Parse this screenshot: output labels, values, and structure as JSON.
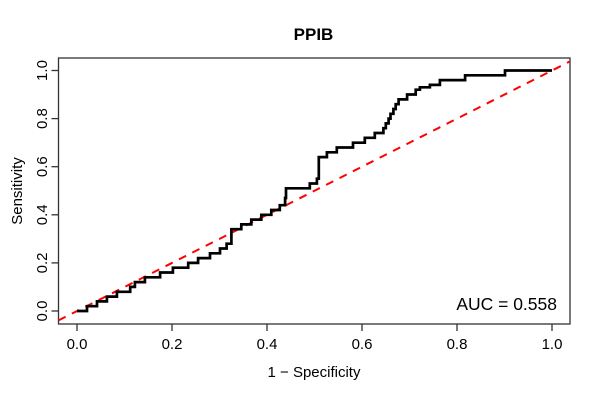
{
  "chart_data": {
    "type": "line",
    "subtype": "roc-step-curve",
    "title": "PPIB",
    "xlabel": "1 − Specificity",
    "ylabel": "Sensitivity",
    "xlim": [
      0.0,
      1.0
    ],
    "ylim": [
      0.0,
      1.0
    ],
    "grid": false,
    "background_color": "#ffffff",
    "box_color": "#333333",
    "x_ticks": {
      "values": [
        0.0,
        0.2,
        0.4,
        0.6,
        0.8,
        1.0
      ],
      "labels": [
        "0.0",
        "0.2",
        "0.4",
        "0.6",
        "0.8",
        "1.0"
      ]
    },
    "y_ticks": {
      "values": [
        0.0,
        0.2,
        0.4,
        0.6,
        0.8,
        1.0
      ],
      "labels": [
        "0.0",
        "0.2",
        "0.4",
        "0.6",
        "0.8",
        "1.0"
      ]
    },
    "annotation": {
      "text": "AUC = 0.558",
      "position": "bottom-right-inside"
    },
    "auc": 0.558,
    "series": [
      {
        "name": "ROC curve",
        "color": "#000000",
        "line_style": "solid",
        "line_width": 2.7,
        "step": true,
        "points": [
          [
            0.0,
            0.0
          ],
          [
            0.021,
            0.02
          ],
          [
            0.042,
            0.04
          ],
          [
            0.063,
            0.06
          ],
          [
            0.084,
            0.08
          ],
          [
            0.112,
            0.1
          ],
          [
            0.122,
            0.12
          ],
          [
            0.143,
            0.14
          ],
          [
            0.175,
            0.16
          ],
          [
            0.202,
            0.18
          ],
          [
            0.234,
            0.2
          ],
          [
            0.255,
            0.22
          ],
          [
            0.28,
            0.24
          ],
          [
            0.301,
            0.26
          ],
          [
            0.315,
            0.28
          ],
          [
            0.325,
            0.3
          ],
          [
            0.325,
            0.34
          ],
          [
            0.346,
            0.36
          ],
          [
            0.367,
            0.38
          ],
          [
            0.388,
            0.4
          ],
          [
            0.409,
            0.42
          ],
          [
            0.427,
            0.44
          ],
          [
            0.438,
            0.47
          ],
          [
            0.44,
            0.51
          ],
          [
            0.49,
            0.53
          ],
          [
            0.505,
            0.55
          ],
          [
            0.509,
            0.59
          ],
          [
            0.509,
            0.64
          ],
          [
            0.526,
            0.66
          ],
          [
            0.547,
            0.68
          ],
          [
            0.581,
            0.7
          ],
          [
            0.606,
            0.72
          ],
          [
            0.627,
            0.74
          ],
          [
            0.645,
            0.76
          ],
          [
            0.65,
            0.78
          ],
          [
            0.656,
            0.8
          ],
          [
            0.66,
            0.82
          ],
          [
            0.666,
            0.84
          ],
          [
            0.671,
            0.86
          ],
          [
            0.677,
            0.88
          ],
          [
            0.695,
            0.9
          ],
          [
            0.713,
            0.92
          ],
          [
            0.722,
            0.93
          ],
          [
            0.743,
            0.94
          ],
          [
            0.764,
            0.96
          ],
          [
            0.817,
            0.98
          ],
          [
            0.901,
            1.0
          ],
          [
            1.0,
            1.0
          ]
        ]
      },
      {
        "name": "Chance reference diagonal",
        "color": "#ff0000",
        "line_style": "dashed",
        "line_width": 2,
        "step": false,
        "points": [
          [
            0.0,
            0.0
          ],
          [
            1.0,
            1.0
          ]
        ]
      }
    ]
  }
}
